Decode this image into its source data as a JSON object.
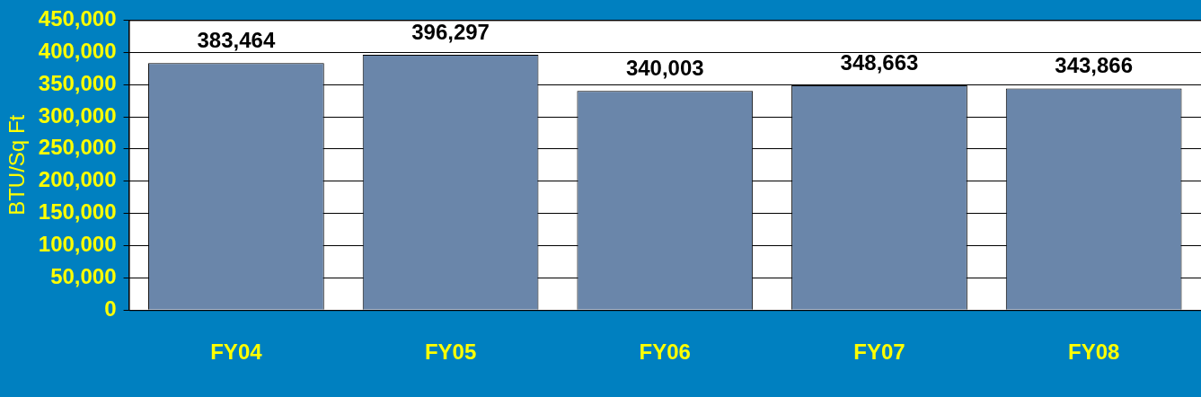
{
  "chart_data": {
    "type": "bar",
    "ylabel": "BTU/Sq Ft",
    "categories": [
      "FY04",
      "FY05",
      "FY06",
      "FY07",
      "FY08"
    ],
    "values": [
      383464,
      396297,
      340003,
      348663,
      343866
    ],
    "color": "#6a86aa",
    "ylim": [
      0,
      450000
    ],
    "yticks": [
      {
        "value": 0,
        "label": "0"
      },
      {
        "value": 50000,
        "label": "50,000"
      },
      {
        "value": 100000,
        "label": "100,000"
      },
      {
        "value": 150000,
        "label": "150,000"
      },
      {
        "value": 200000,
        "label": "200,000"
      },
      {
        "value": 250000,
        "label": "250,000"
      },
      {
        "value": 300000,
        "label": "300,000"
      },
      {
        "value": 350000,
        "label": "350,000"
      },
      {
        "value": 400000,
        "label": "400,000"
      },
      {
        "value": 450000,
        "label": "450,000"
      }
    ],
    "value_labels": [
      "383,464",
      "396,297",
      "340,003",
      "348,663",
      "343,866"
    ],
    "grid": "y",
    "legend": false
  }
}
